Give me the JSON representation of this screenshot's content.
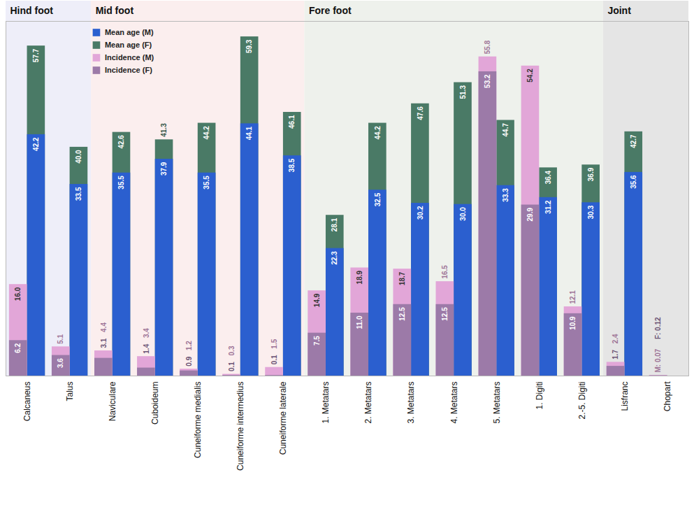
{
  "chart_data": {
    "type": "bar",
    "categories": [
      "Calcaneus",
      "Talus",
      "Naviculare",
      "Cuboideum",
      "Cuneiforme medialis",
      "Cuneiforme intermedius",
      "Cuneiforme laterale",
      "1. Metatars",
      "2. Metatars",
      "3. Metatars",
      "4. Metatars",
      "5. Metatars",
      "1. Digiti",
      "2.-5. Digiti",
      "Lisfranc",
      "Chopart"
    ],
    "groups": [
      {
        "name": "Hind foot",
        "categories": [
          "Calcaneus",
          "Talus"
        ]
      },
      {
        "name": "Mid foot",
        "categories": [
          "Naviculare",
          "Cuboideum",
          "Cuneiforme medialis",
          "Cuneiforme intermedius",
          "Cuneiforme laterale"
        ]
      },
      {
        "name": "Fore foot",
        "categories": [
          "1. Metatars",
          "2. Metatars",
          "3. Metatars",
          "4. Metatars",
          "5. Metatars",
          "1. Digiti",
          "2.-5. Digiti"
        ]
      },
      {
        "name": "Joint",
        "categories": [
          "Lisfranc",
          "Chopart"
        ]
      }
    ],
    "series": [
      {
        "name": "Mean age (M)",
        "color": "#2b5fcf",
        "values": [
          42.2,
          33.5,
          35.5,
          37.9,
          35.5,
          44.1,
          38.5,
          22.3,
          32.5,
          30.2,
          30.0,
          33.3,
          31.2,
          30.3,
          35.6,
          null
        ],
        "value_labels": [
          "42.2",
          "33.5",
          "35.5",
          "37.9",
          "35.5",
          "44.1",
          "38.5",
          "22.3",
          "32.5",
          "30.2",
          "30.0",
          "33.3",
          "31.2",
          "30.3",
          "35.6",
          null
        ]
      },
      {
        "name": "Mean age (F)",
        "color": "#4a7a66",
        "values": [
          57.7,
          40.0,
          42.6,
          41.3,
          44.2,
          59.3,
          46.1,
          28.1,
          44.2,
          47.6,
          51.3,
          44.7,
          36.4,
          36.9,
          42.7,
          null
        ],
        "value_labels": [
          "57.7",
          "40.0",
          "42.6",
          "41.3",
          "44.2",
          "59.3",
          "46.1",
          "28.1",
          "44.2",
          "47.6",
          "51.3",
          "44.7",
          "36.4",
          "36.9",
          "42.7",
          null
        ]
      },
      {
        "name": "Incidence (M)",
        "color": "#e2a6d8",
        "values": [
          16.0,
          5.1,
          4.4,
          3.4,
          1.2,
          0.3,
          1.5,
          14.9,
          18.9,
          18.7,
          16.5,
          55.8,
          54.2,
          12.1,
          2.4,
          0.07
        ],
        "value_labels": [
          "16.0",
          "5.1",
          "4.4",
          "3.4",
          "1.2",
          "0.3",
          "1.5",
          "14.9",
          "18.9",
          "18.7",
          "16.5",
          "55.8",
          "54.2",
          "12.1",
          "2.4",
          "M: 0.07"
        ]
      },
      {
        "name": "Incidence (F)",
        "color": "#9c7aa8",
        "values": [
          6.2,
          3.6,
          3.1,
          1.4,
          0.9,
          0.1,
          0.1,
          7.5,
          11.0,
          12.5,
          12.5,
          53.2,
          29.9,
          10.9,
          1.7,
          0.12
        ],
        "value_labels": [
          "6.2",
          "3.6",
          "3.1",
          "1.4",
          "0.9",
          "0.1",
          "0.1",
          "7.5",
          "11.0",
          "12.5",
          "12.5",
          "53.2",
          "29.9",
          "10.9",
          "1.7",
          "F: 0.12"
        ]
      }
    ],
    "ylim": [
      0,
      62
    ],
    "yticks": [],
    "tick_labels": false,
    "data_labels": true,
    "legend": "top",
    "grid": false
  }
}
